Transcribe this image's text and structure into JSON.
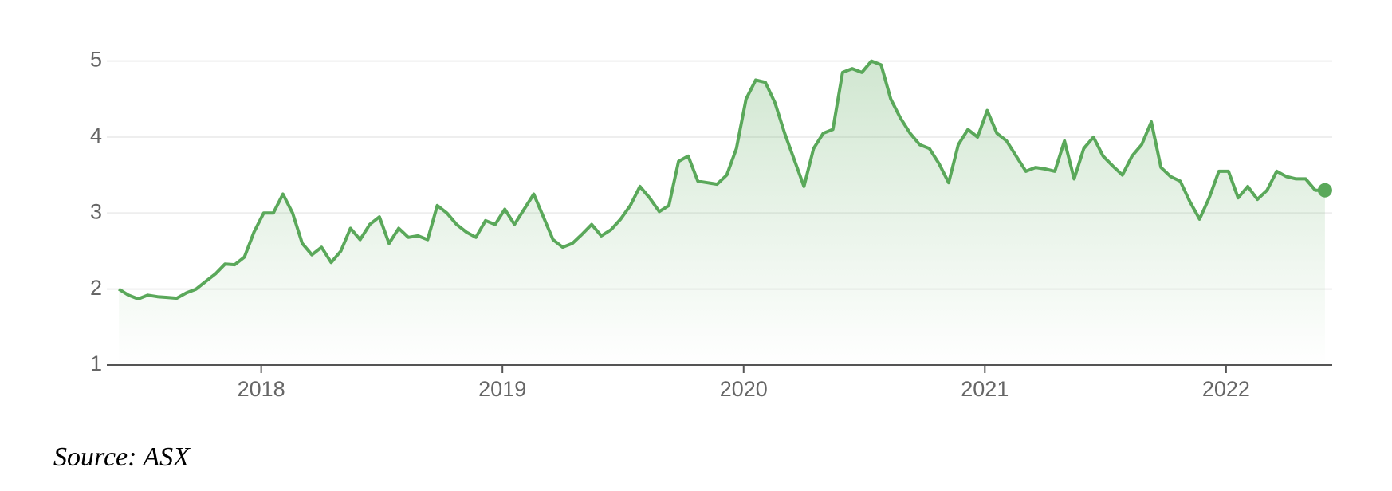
{
  "chart_data": {
    "type": "line",
    "source": "Source: ASX",
    "x": [
      2017.41,
      2017.45,
      2017.49,
      2017.53,
      2017.57,
      2017.61,
      2017.65,
      2017.69,
      2017.73,
      2017.77,
      2017.81,
      2017.85,
      2017.89,
      2017.93,
      2017.97,
      2018.01,
      2018.05,
      2018.09,
      2018.13,
      2018.17,
      2018.21,
      2018.25,
      2018.29,
      2018.33,
      2018.37,
      2018.41,
      2018.45,
      2018.49,
      2018.53,
      2018.57,
      2018.61,
      2018.65,
      2018.69,
      2018.73,
      2018.77,
      2018.81,
      2018.85,
      2018.89,
      2018.93,
      2018.97,
      2019.01,
      2019.05,
      2019.09,
      2019.13,
      2019.17,
      2019.21,
      2019.25,
      2019.29,
      2019.33,
      2019.37,
      2019.41,
      2019.45,
      2019.49,
      2019.53,
      2019.57,
      2019.61,
      2019.65,
      2019.69,
      2019.73,
      2019.77,
      2019.81,
      2019.85,
      2019.89,
      2019.93,
      2019.97,
      2020.01,
      2020.05,
      2020.09,
      2020.13,
      2020.17,
      2020.21,
      2020.25,
      2020.29,
      2020.33,
      2020.37,
      2020.41,
      2020.45,
      2020.49,
      2020.53,
      2020.57,
      2020.61,
      2020.65,
      2020.69,
      2020.73,
      2020.77,
      2020.81,
      2020.85,
      2020.89,
      2020.93,
      2020.97,
      2021.01,
      2021.05,
      2021.09,
      2021.13,
      2021.17,
      2021.21,
      2021.25,
      2021.29,
      2021.33,
      2021.37,
      2021.41,
      2021.45,
      2021.49,
      2021.53,
      2021.57,
      2021.61,
      2021.65,
      2021.69,
      2021.73,
      2021.77,
      2021.81,
      2021.85,
      2021.89,
      2021.93,
      2021.97,
      2022.01,
      2022.05,
      2022.09,
      2022.13,
      2022.17,
      2022.21,
      2022.25,
      2022.29,
      2022.33,
      2022.37,
      2022.41
    ],
    "series": [
      {
        "color": "#5aa85a",
        "values": [
          2.0,
          1.92,
          1.87,
          1.92,
          1.9,
          1.89,
          1.88,
          1.95,
          2.0,
          2.1,
          2.2,
          2.33,
          2.32,
          2.42,
          2.75,
          3.0,
          3.0,
          3.25,
          3.0,
          2.6,
          2.45,
          2.55,
          2.35,
          2.5,
          2.8,
          2.65,
          2.85,
          2.95,
          2.6,
          2.8,
          2.68,
          2.7,
          2.65,
          3.1,
          3.0,
          2.85,
          2.75,
          2.68,
          2.9,
          2.85,
          3.05,
          2.85,
          3.05,
          3.25,
          2.95,
          2.65,
          2.55,
          2.6,
          2.72,
          2.85,
          2.7,
          2.78,
          2.92,
          3.1,
          3.35,
          3.2,
          3.02,
          3.1,
          3.68,
          3.75,
          3.42,
          3.4,
          3.38,
          3.5,
          3.85,
          4.5,
          4.75,
          4.72,
          4.45,
          4.05,
          3.7,
          3.35,
          3.85,
          4.05,
          4.1,
          4.85,
          4.9,
          4.85,
          5.0,
          4.95,
          4.5,
          4.25,
          4.05,
          3.9,
          3.85,
          3.65,
          3.4,
          3.9,
          4.1,
          4.0,
          4.35,
          4.05,
          3.95,
          3.75,
          3.55,
          3.6,
          3.58,
          3.55,
          3.95,
          3.45,
          3.85,
          4.0,
          3.75,
          3.62,
          3.5,
          3.75,
          3.9,
          4.2,
          3.6,
          3.48,
          3.42,
          3.15,
          2.92,
          3.2,
          3.55,
          3.55,
          3.2,
          3.35,
          3.18,
          3.3,
          3.55,
          3.48,
          3.45,
          3.45,
          3.3,
          3.3
        ]
      }
    ],
    "xlim": [
      2017.36,
      2022.44
    ],
    "xticks": [
      2018,
      2019,
      2020,
      2021,
      2022
    ],
    "ylim": [
      1,
      5.3
    ],
    "yticks": [
      1,
      2,
      3,
      4,
      5
    ],
    "grid": true
  }
}
